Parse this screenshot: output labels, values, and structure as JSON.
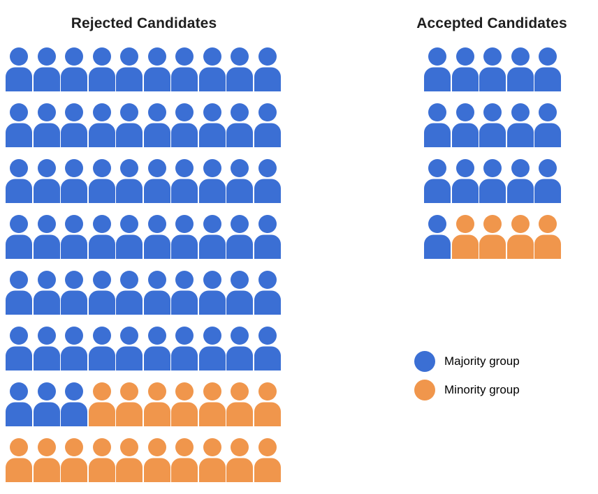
{
  "chart_data": {
    "type": "pictogram",
    "description": "Waffle/pictogram chart of rejected vs accepted candidates by group",
    "colors": {
      "majority": "#3B6FD4",
      "minority": "#F0964C"
    },
    "icon_codes": {
      "B": "majority",
      "O": "minority"
    },
    "panels": [
      {
        "title": "Rejected Candidates",
        "columns": 10,
        "rows": [
          "BBBBBBBBBB",
          "BBBBBBBBBB",
          "BBBBBBBBBB",
          "BBBBBBBBBB",
          "BBBBBBBBBB",
          "BBBBBBBBBB",
          "BBBOOOOOOO",
          "OOOOOOOOOO"
        ],
        "counts": {
          "majority": 63,
          "minority": 17,
          "total": 80
        }
      },
      {
        "title": "Accepted Candidates",
        "columns": 5,
        "rows": [
          "BBBBB",
          "BBBBB",
          "BBBBB",
          "BOOOO"
        ],
        "counts": {
          "majority": 16,
          "minority": 4,
          "total": 20
        }
      }
    ],
    "legend": [
      {
        "group": "majority",
        "label": "Majority group"
      },
      {
        "group": "minority",
        "label": "Minority group"
      }
    ]
  }
}
